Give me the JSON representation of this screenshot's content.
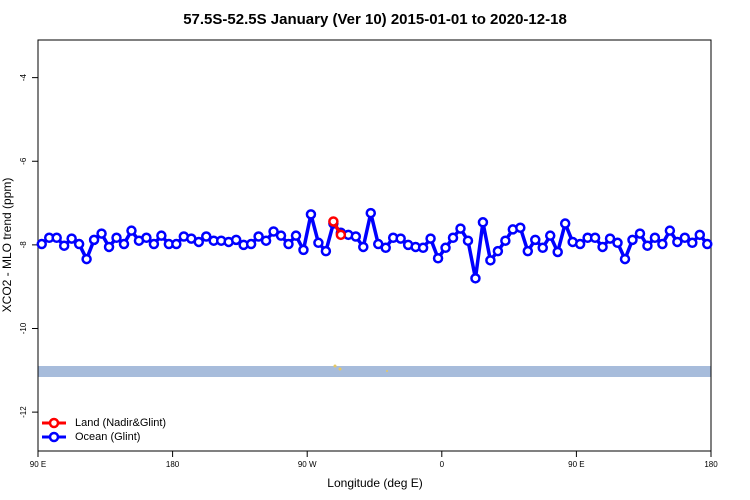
{
  "chart_data": {
    "type": "line",
    "title": "57.5S-52.5S January (Ver 10)   2015-01-01 to 2020-12-18",
    "x_label": "Longitude (deg E)",
    "y_label": "XCO2 - MLO trend (ppm)",
    "xlim": [
      90,
      540
    ],
    "xticks": [
      {
        "value": 90,
        "label": "90 E"
      },
      180,
      {
        "value": 270,
        "label": "90 W"
      },
      {
        "value": 360,
        "label": "0"
      },
      {
        "value": 450,
        "label": "90 E"
      },
      {
        "value": 540,
        "label": "180"
      }
    ],
    "ylim": [
      -12.93,
      -3.1
    ],
    "yticks": [
      -4,
      -6,
      -8,
      -10,
      -12
    ],
    "legend": "bottom-left",
    "x": [
      92.5,
      97.5,
      102.5,
      107.5,
      112.5,
      117.5,
      122.5,
      127.5,
      132.5,
      137.5,
      142.5,
      147.5,
      152.5,
      157.5,
      162.5,
      167.5,
      172.5,
      177.5,
      182.5,
      187.5,
      192.5,
      197.5,
      202.5,
      207.5,
      212.5,
      217.5,
      222.5,
      227.5,
      232.5,
      237.5,
      242.5,
      247.5,
      252.5,
      257.5,
      262.5,
      267.5,
      272.5,
      277.5,
      282.5,
      287.5,
      292.5,
      297.5,
      302.5,
      307.5,
      312.5,
      317.5,
      322.5,
      327.5,
      332.5,
      337.5,
      342.5,
      347.5,
      352.5,
      357.5,
      362.5,
      367.5,
      372.5,
      377.5,
      382.5,
      387.5,
      392.5,
      397.5,
      402.5,
      407.5,
      412.5,
      417.5,
      422.5,
      427.5,
      432.5,
      437.5,
      442.5,
      447.5,
      452.5,
      457.5,
      462.5,
      467.5,
      472.5,
      477.5,
      482.5,
      487.5,
      492.5,
      497.5,
      502.5,
      507.5,
      512.5,
      517.5,
      522.5,
      527.5,
      532.5,
      537.5
    ],
    "series": [
      {
        "name": "Land (Nadir&Glint)",
        "color": "#ff0000",
        "x": [
          287.5,
          292.5
        ],
        "values": [
          -7.44,
          -7.76
        ]
      },
      {
        "name": "Ocean (Glint)",
        "color": "#0000ff",
        "values": [
          -7.98,
          -7.83,
          -7.83,
          -8.02,
          -7.85,
          -7.98,
          -8.34,
          -7.88,
          -7.73,
          -8.05,
          -7.83,
          -7.98,
          -7.66,
          -7.9,
          -7.83,
          -7.98,
          -7.78,
          -7.98,
          -7.98,
          -7.8,
          -7.85,
          -7.93,
          -7.8,
          -7.9,
          -7.9,
          -7.93,
          -7.88,
          -8.0,
          -7.98,
          -7.8,
          -7.9,
          -7.68,
          -7.78,
          -7.98,
          -7.78,
          -8.12,
          -7.27,
          -7.95,
          -8.15,
          -7.49,
          -7.71,
          -7.76,
          -7.8,
          -8.05,
          -7.24,
          -7.98,
          -8.07,
          -7.83,
          -7.85,
          -8.0,
          -8.05,
          -8.07,
          -7.85,
          -8.32,
          -8.07,
          -7.83,
          -7.61,
          -7.9,
          -8.8,
          -7.46,
          -8.37,
          -8.15,
          -7.9,
          -7.63,
          -7.59,
          -8.15,
          -7.88,
          -8.07,
          -7.78,
          -8.17,
          -7.49,
          -7.93,
          -7.98,
          -7.83,
          -7.83,
          -8.05,
          -7.85,
          -7.95,
          -8.34,
          -7.88,
          -7.73,
          -8.02,
          -7.83,
          -7.98,
          -7.66,
          -7.93,
          -7.83,
          -7.95,
          -7.76,
          -7.98
        ]
      }
    ]
  }
}
